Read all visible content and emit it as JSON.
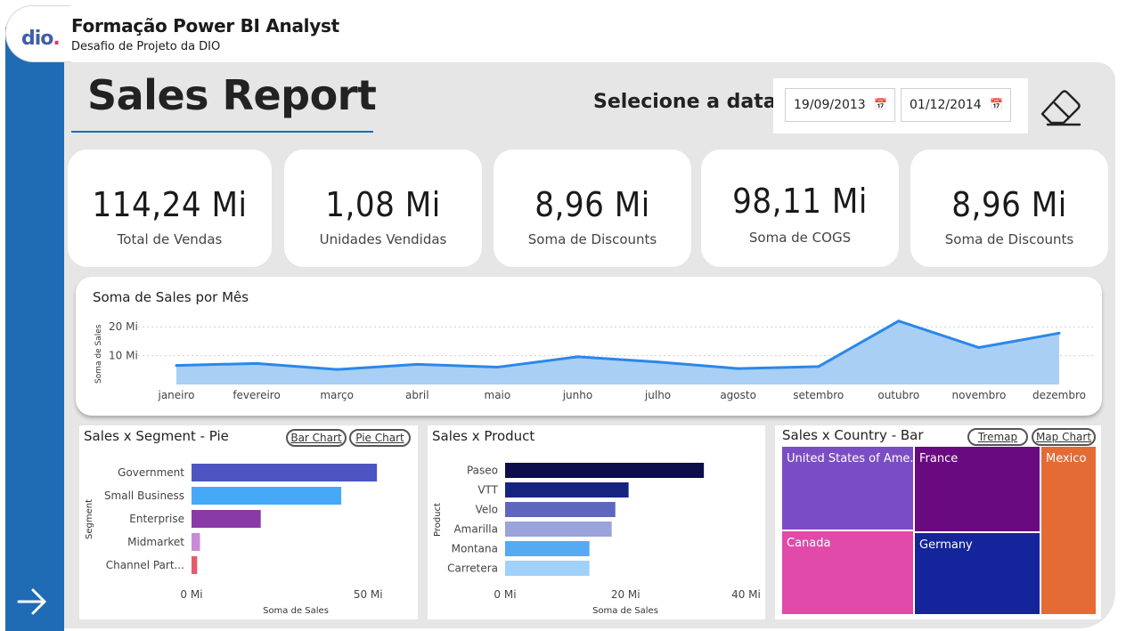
{
  "header": {
    "logo_text": "dio",
    "app_title": "Formação Power BI Analyst",
    "app_subtitle": "Desafio de Projeto da DIO"
  },
  "report": {
    "title": "Sales Report",
    "date_label": "Selecione a data:",
    "date_start": "19/09/2013",
    "date_end": "01/12/2014",
    "clear_icon": "eraser-icon",
    "next_icon": "arrow-right-icon"
  },
  "kpis": [
    {
      "value": "114,24 Mi",
      "label": "Total de Vendas"
    },
    {
      "value": "1,08 Mi",
      "label": "Unidades Vendidas"
    },
    {
      "value": "8,96 Mi",
      "label": "Soma de Discounts"
    },
    {
      "value": "98,11 Mi",
      "label": "Soma de COGS"
    },
    {
      "value": "8,96 Mi",
      "label": "Soma de Discounts"
    }
  ],
  "colors": {
    "brand_blue": "#1f6cb5",
    "line_stroke": "#2b87e8",
    "line_fill": "#a9cff5"
  },
  "chart_data": [
    {
      "type": "area",
      "title": "Soma de Sales por Mês",
      "xlabel": "",
      "ylabel": "Soma de Sales",
      "categories": [
        "janeiro",
        "fevereiro",
        "março",
        "abril",
        "maio",
        "junho",
        "julho",
        "agosto",
        "setembro",
        "outubro",
        "novembro",
        "dezembro"
      ],
      "values": [
        6.6,
        7.3,
        5.2,
        7.0,
        6.0,
        9.6,
        7.8,
        5.5,
        6.2,
        22.0,
        12.8,
        17.8
      ],
      "ylim": [
        0,
        25
      ],
      "yticks": [
        10,
        20
      ],
      "ytick_labels": [
        "10 Mi",
        "20 Mi"
      ],
      "grid": true
    },
    {
      "type": "bar",
      "orientation": "horizontal",
      "title": "Sales x Segment - Pie",
      "xlabel": "Soma de Sales",
      "ylabel": "Segment",
      "categories": [
        "Government",
        "Small Business",
        "Enterprise",
        "Midmarket",
        "Channel Part..."
      ],
      "values": [
        52.5,
        42.4,
        19.6,
        2.4,
        1.6
      ],
      "colors": [
        "#4c55c2",
        "#46a9f7",
        "#8a3aa6",
        "#c98ad6",
        "#e35b6e"
      ],
      "xticks": [
        0,
        50
      ],
      "xtick_labels": [
        "0 Mi",
        "50 Mi"
      ],
      "xlim": [
        0,
        56
      ]
    },
    {
      "type": "bar",
      "orientation": "horizontal",
      "title": "Sales x Product",
      "xlabel": "Soma de Sales",
      "ylabel": "Product",
      "categories": [
        "Paseo",
        "VTT",
        "Velo",
        "Amarilla",
        "Montana",
        "Carretera"
      ],
      "values": [
        33.0,
        20.5,
        18.3,
        17.7,
        14.0,
        14.0
      ],
      "colors": [
        "#0d0d4a",
        "#162480",
        "#5e67bd",
        "#9aa3da",
        "#54aaf3",
        "#9fd1fb"
      ],
      "xticks": [
        0,
        20,
        40
      ],
      "xtick_labels": [
        "0 Mi",
        "20 Mi",
        "40 Mi"
      ],
      "xlim": [
        0,
        42
      ]
    },
    {
      "type": "table",
      "subtype": "treemap",
      "title": "Sales x Country - Bar",
      "categories": [
        "United States of America",
        "France",
        "Mexico",
        "Canada",
        "Germany"
      ],
      "display_labels": [
        "United States of Ame...",
        "France",
        "Mexico",
        "Canada",
        "Germany"
      ],
      "colors": [
        "#7b4dc4",
        "#6a0a80",
        "#e56b35",
        "#e14aa8",
        "#14249a"
      ]
    }
  ],
  "segment_card": {
    "title": "Sales x Segment - Pie",
    "btn_bar": "Bar Chart",
    "btn_pie": "Pie Chart"
  },
  "product_card": {
    "title": "Sales x Product"
  },
  "country_card": {
    "title": "Sales x Country - Bar",
    "btn_treemap": "Tremap",
    "btn_map": "Map Chart"
  }
}
